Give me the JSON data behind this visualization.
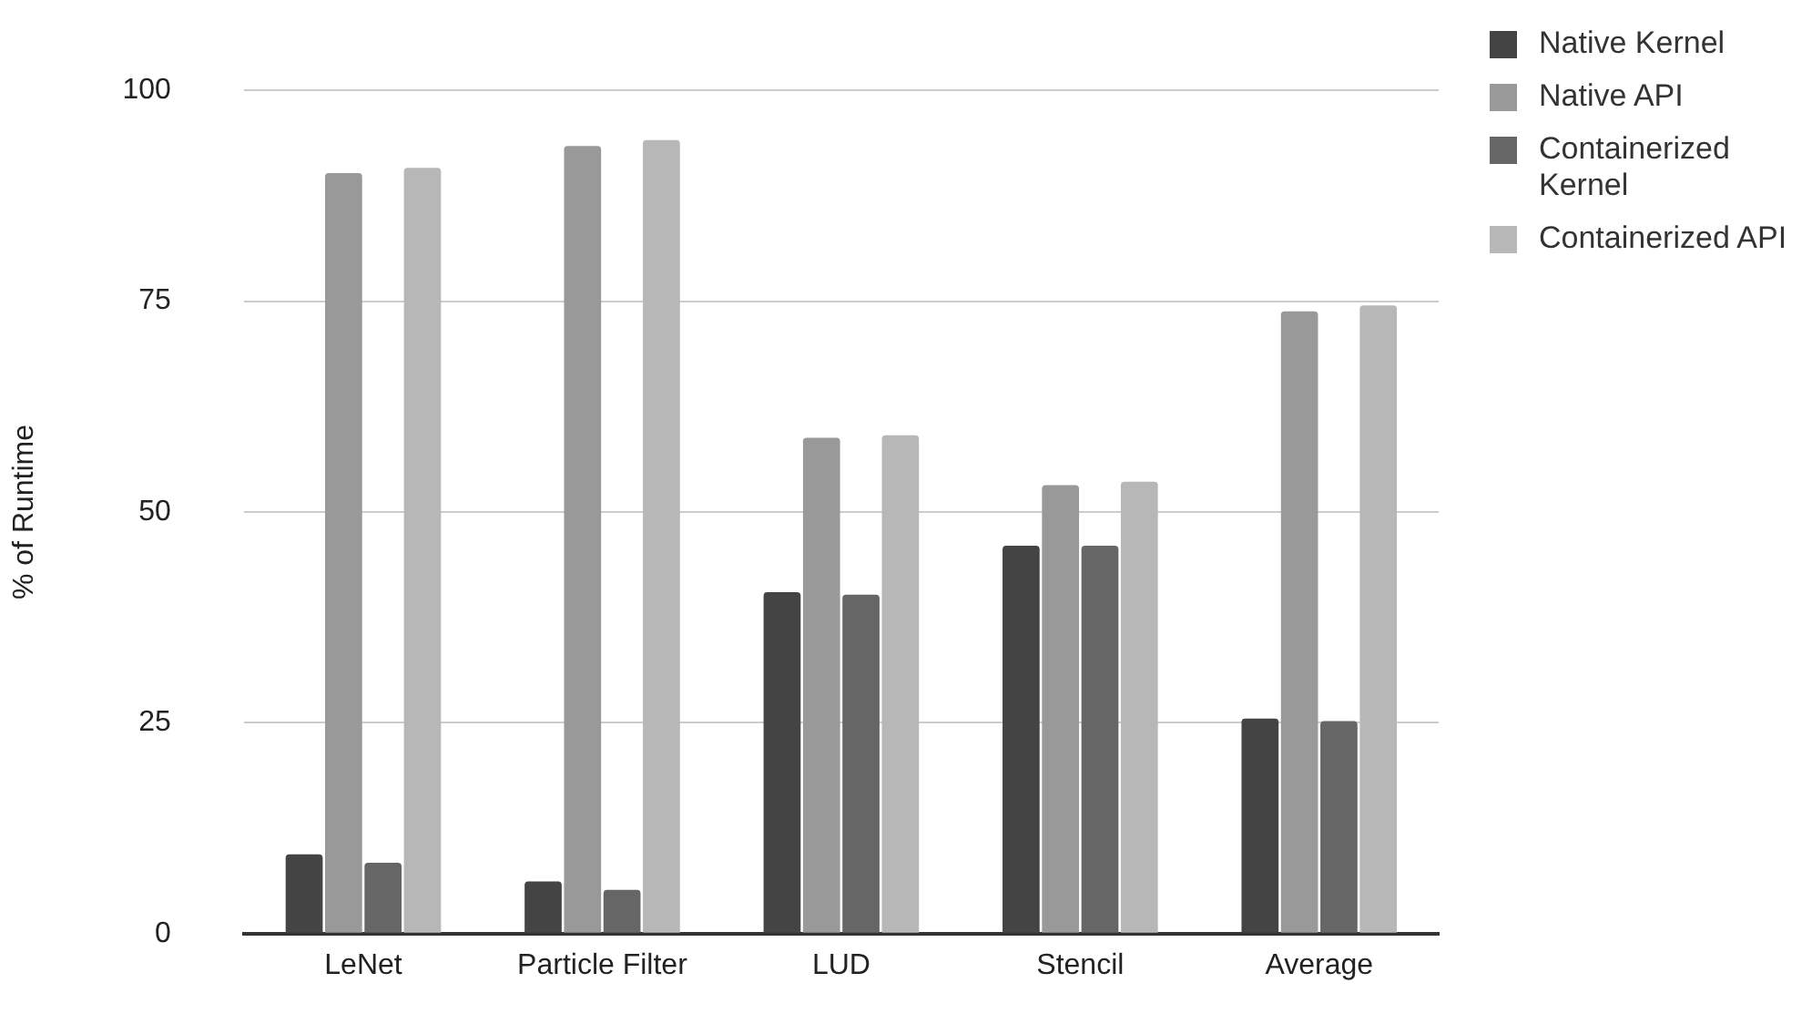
{
  "chart_data": {
    "type": "bar",
    "ylabel": "% of Runtime",
    "categories": [
      "LeNet",
      "Particle Filter",
      "LUD",
      "Stencil",
      "Average"
    ],
    "series": [
      {
        "name": "Native Kernel",
        "color": "#444444",
        "values": [
          9.4,
          6.2,
          40.5,
          46.0,
          25.5
        ]
      },
      {
        "name": "Native API",
        "color": "#999999",
        "values": [
          90.2,
          93.4,
          58.8,
          53.2,
          73.8
        ]
      },
      {
        "name": "Containerized Kernel",
        "color": "#666666",
        "values": [
          8.4,
          5.2,
          40.2,
          46.0,
          25.2
        ]
      },
      {
        "name": "Containerized API",
        "color": "#b7b7b7",
        "values": [
          90.8,
          94.1,
          59.1,
          53.6,
          74.5
        ]
      }
    ],
    "ylim": [
      0,
      100
    ],
    "yticks": [
      0,
      25,
      50,
      75,
      100
    ],
    "grid": "y",
    "legend": "right"
  }
}
